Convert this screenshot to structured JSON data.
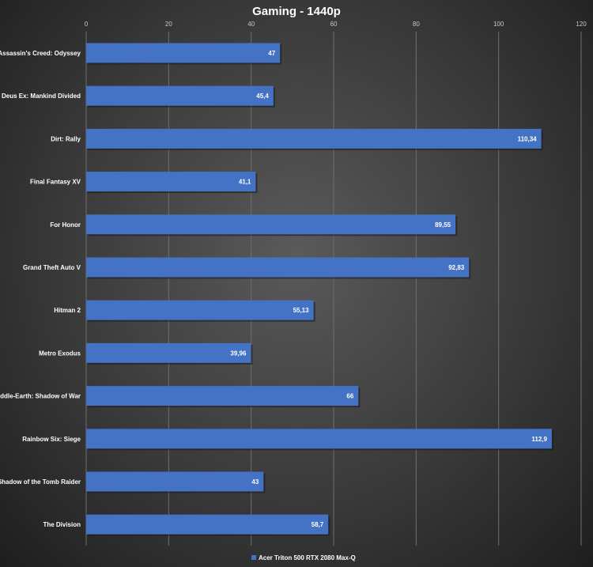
{
  "chart_data": {
    "type": "bar",
    "orientation": "horizontal",
    "title": "Gaming - 1440p",
    "xlabel": "",
    "ylabel": "",
    "xlim": [
      0,
      120
    ],
    "ticks": [
      "0",
      "20",
      "40",
      "60",
      "80",
      "100",
      "120"
    ],
    "tick_values": [
      0,
      20,
      40,
      60,
      80,
      100,
      120
    ],
    "grid": true,
    "legend_position": "bottom",
    "categories": [
      "Assassin's Creed: Odyssey",
      "Deus Ex: Mankind Divided",
      "Dirt: Rally",
      "Final Fantasy XV",
      "For Honor",
      "Grand Theft Auto V",
      "Hitman 2",
      "Metro Exodus",
      "Middle-Earth: Shadow of War",
      "Rainbow Six: Siege",
      "Shadow of the Tomb Raider",
      "The Division"
    ],
    "series": [
      {
        "name": "Acer Triton 500 RTX 2080 Max-Q",
        "color": "#4472c4",
        "values": [
          47,
          45.4,
          110.34,
          41.1,
          89.55,
          92.83,
          55.13,
          39.96,
          66,
          112.9,
          43,
          58.7
        ],
        "labels": [
          "47",
          "45,4",
          "110,34",
          "41,1",
          "89,55",
          "92,83",
          "55,13",
          "39,96",
          "66",
          "112,9",
          "43",
          "58,7"
        ]
      }
    ]
  }
}
